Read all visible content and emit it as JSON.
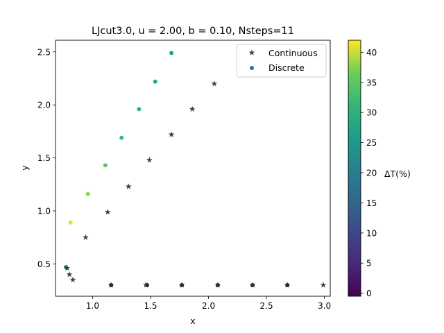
{
  "chart_data": {
    "type": "scatter",
    "title": "LJcut3.0, u = 2.00, b = 0.10, Nsteps=11",
    "xlabel": "x",
    "ylabel": "y",
    "xlim": [
      0.68,
      3.05
    ],
    "ylim": [
      0.195,
      2.61
    ],
    "xticks": [
      1.0,
      1.5,
      2.0,
      2.5,
      3.0
    ],
    "xtick_labels": [
      "1.0",
      "1.5",
      "2.0",
      "2.5",
      "3.0"
    ],
    "yticks": [
      0.5,
      1.0,
      1.5,
      2.0,
      2.5
    ],
    "ytick_labels": [
      "0.5",
      "1.0",
      "1.5",
      "2.0",
      "2.5"
    ],
    "legend": {
      "position": "top-right",
      "entries": [
        "Continuous",
        "Discrete"
      ]
    },
    "colorbar": {
      "label": "ΔT(%)",
      "range": [
        -0.5,
        42
      ],
      "ticks": [
        0,
        5,
        10,
        15,
        20,
        25,
        30,
        35,
        40
      ],
      "tick_labels": [
        "0",
        "5",
        "10",
        "15",
        "20",
        "25",
        "30",
        "35",
        "40"
      ],
      "colormap": "viridis"
    },
    "series": [
      {
        "name": "Continuous",
        "marker": "star",
        "color": "#333333",
        "points": [
          {
            "x": 0.78,
            "y": 0.46
          },
          {
            "x": 0.8,
            "y": 0.4
          },
          {
            "x": 0.83,
            "y": 0.35
          },
          {
            "x": 0.94,
            "y": 0.75
          },
          {
            "x": 1.13,
            "y": 0.99
          },
          {
            "x": 1.31,
            "y": 1.23
          },
          {
            "x": 1.49,
            "y": 1.48
          },
          {
            "x": 1.68,
            "y": 1.72
          },
          {
            "x": 1.86,
            "y": 1.96
          },
          {
            "x": 2.05,
            "y": 2.2
          },
          {
            "x": 1.16,
            "y": 0.3
          },
          {
            "x": 1.46,
            "y": 0.3
          },
          {
            "x": 1.77,
            "y": 0.3
          },
          {
            "x": 2.08,
            "y": 0.3
          },
          {
            "x": 2.38,
            "y": 0.3
          },
          {
            "x": 2.68,
            "y": 0.3
          },
          {
            "x": 2.99,
            "y": 0.3
          }
        ]
      },
      {
        "name": "Discrete",
        "marker": "circle",
        "points": [
          {
            "x": 0.77,
            "y": 0.47,
            "dT": 22
          },
          {
            "x": 0.81,
            "y": 0.89,
            "dT": 41
          },
          {
            "x": 0.96,
            "y": 1.16,
            "dT": 38
          },
          {
            "x": 1.11,
            "y": 1.43,
            "dT": 35
          },
          {
            "x": 1.25,
            "y": 1.69,
            "dT": 32
          },
          {
            "x": 1.4,
            "y": 1.96,
            "dT": 30
          },
          {
            "x": 1.54,
            "y": 2.22,
            "dT": 28
          },
          {
            "x": 1.68,
            "y": 2.49,
            "dT": 26
          },
          {
            "x": 1.16,
            "y": 0.3,
            "dT": 0
          },
          {
            "x": 1.47,
            "y": 0.3,
            "dT": 0
          },
          {
            "x": 1.77,
            "y": 0.3,
            "dT": 0
          },
          {
            "x": 2.08,
            "y": 0.3,
            "dT": 0
          },
          {
            "x": 2.38,
            "y": 0.3,
            "dT": 0
          },
          {
            "x": 2.68,
            "y": 0.3,
            "dT": 0
          }
        ]
      }
    ]
  },
  "colors": {
    "legend_discrete": "#1f77b4",
    "continuous_marker": "#333333"
  }
}
